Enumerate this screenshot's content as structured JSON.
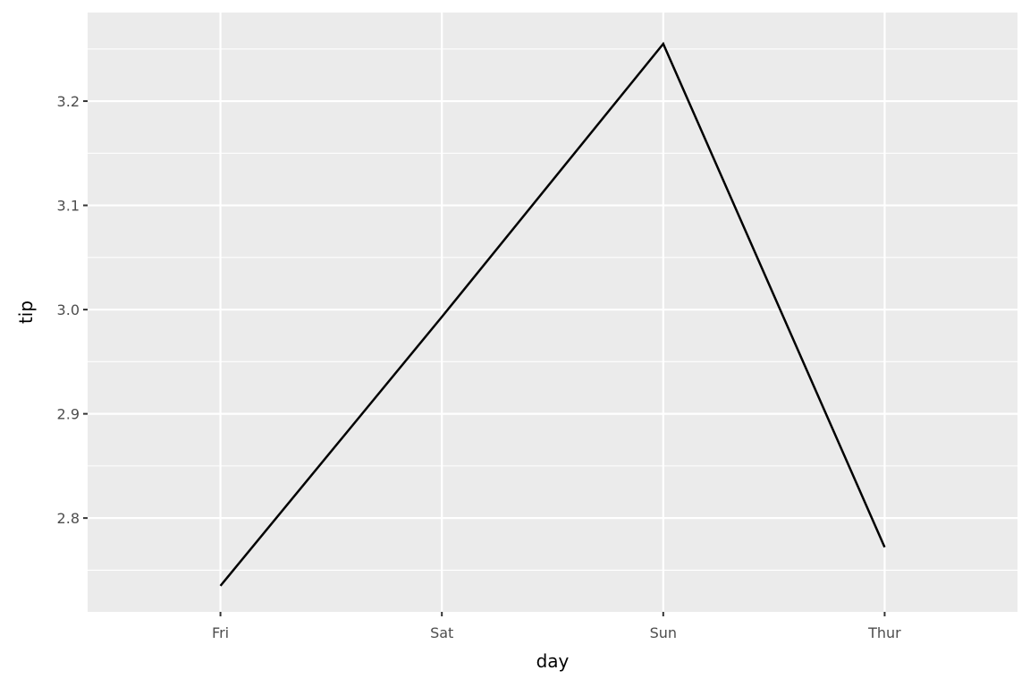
{
  "chart_data": {
    "type": "line",
    "title": "",
    "xlabel": "day",
    "ylabel": "tip",
    "categories": [
      "Fri",
      "Sat",
      "Sun",
      "Thur"
    ],
    "series": [
      {
        "values": [
          2.735,
          2.993,
          3.255,
          2.772
        ]
      }
    ],
    "ylim": [
      2.71,
      3.285
    ],
    "y_ticks": [
      "2.8",
      "2.9",
      "3.0",
      "3.1",
      "3.2"
    ],
    "grid": true,
    "legend": "none",
    "colors": {
      "panel": "#ebebeb",
      "grid": "#ffffff",
      "line": "#000000",
      "tick": "#333333"
    }
  }
}
